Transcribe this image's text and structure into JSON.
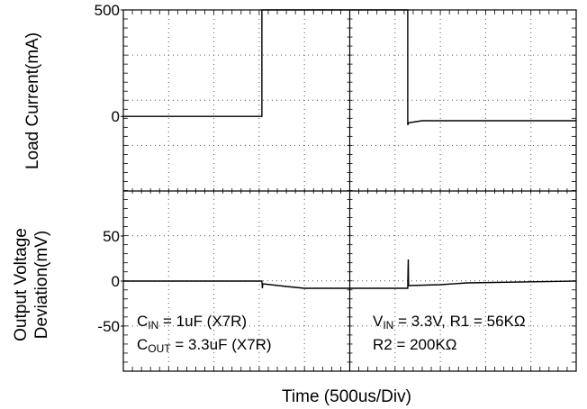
{
  "chart_data": [
    {
      "type": "line",
      "title": "",
      "ylabel": "Load  Current(mA)",
      "xlabel": "",
      "xlim": [
        0,
        5000
      ],
      "ylim": [
        -350,
        500
      ],
      "yticks": [
        {
          "value": 500,
          "label": "500"
        },
        {
          "value": 0,
          "label": "0"
        }
      ],
      "grid": true,
      "series": [
        {
          "x": [
            0,
            1530,
            1530,
            3140,
            3140,
            3150,
            3300,
            5000
          ],
          "y": [
            0,
            0,
            500,
            500,
            -40,
            -30,
            -20,
            -20
          ]
        }
      ]
    },
    {
      "type": "line",
      "title": "",
      "ylabel_lines": [
        "Output Voltage",
        "Deviation(mV)"
      ],
      "xlabel": "Time  (500us/Div)",
      "xlim": [
        0,
        5000
      ],
      "ylim": [
        -100,
        100
      ],
      "yticks": [
        {
          "value": 50,
          "label": "50"
        },
        {
          "value": 0,
          "label": "0"
        },
        {
          "value": -50,
          "label": "-50"
        }
      ],
      "grid": true,
      "series": [
        {
          "x": [
            0,
            1530,
            1535,
            1540,
            1800,
            2000,
            3140,
            3143,
            3146,
            3149,
            3152,
            3500,
            3800,
            5000
          ],
          "y": [
            0,
            0,
            -8,
            -3,
            -6,
            -8,
            -8,
            12,
            24,
            -4,
            -5,
            -4,
            -2,
            0
          ]
        }
      ],
      "annotations": {
        "left": [
          {
            "main": "C",
            "sub": "IN",
            "rest": " = 1uF (X7R)"
          },
          {
            "main": "C",
            "sub": "OUT",
            "rest": " = 3.3uF (X7R)"
          }
        ],
        "right": [
          {
            "main": "V",
            "sub": "IN",
            "rest": " = 3.3V, R1 = 56KΩ"
          },
          {
            "main": "",
            "sub": "",
            "rest": "R2 = 200KΩ"
          }
        ]
      }
    }
  ]
}
